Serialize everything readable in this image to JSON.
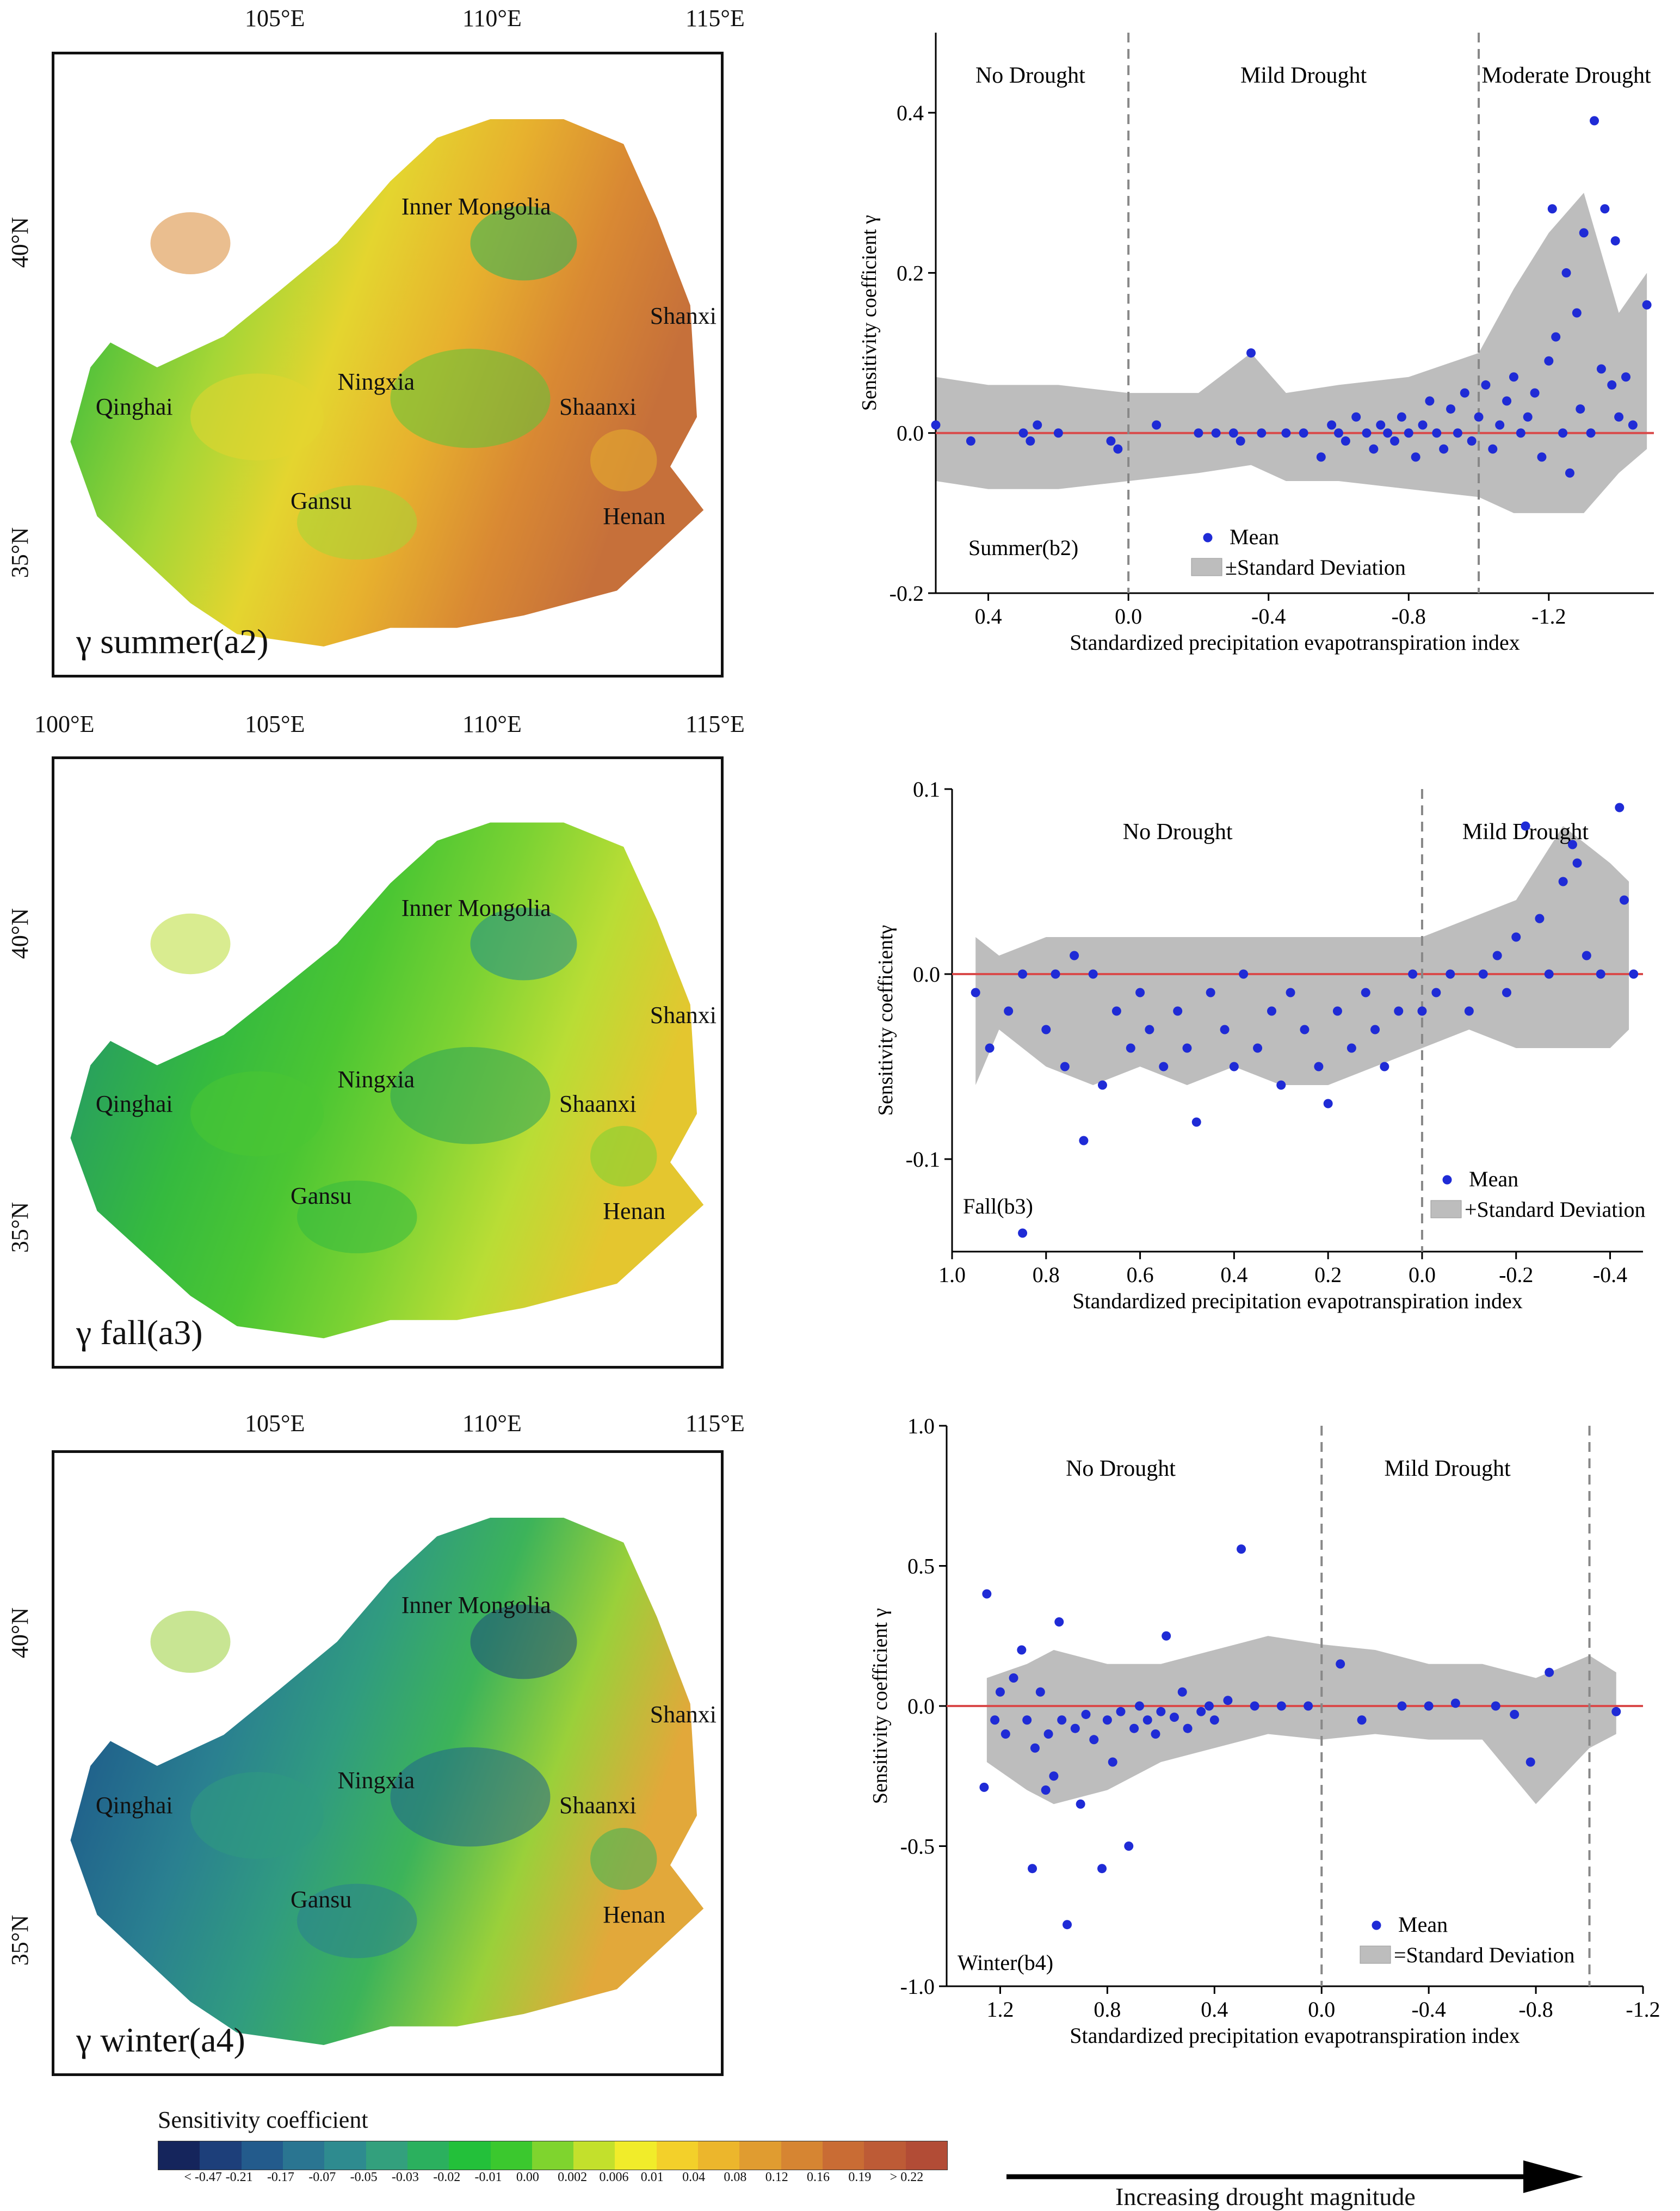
{
  "maps": [
    {
      "id": "a2",
      "panel_label": "γ summer(a2)",
      "top_ticks": [
        "105°E",
        "110°E",
        "115°E"
      ],
      "left_ticks": [
        "40°N",
        "35°N"
      ],
      "regions": [
        "Inner Mongolia",
        "Ningxia",
        "Qinghai",
        "Shaanxi",
        "Shanxi",
        "Gansu",
        "Henan"
      ]
    },
    {
      "id": "a3",
      "panel_label": "γ fall(a3)",
      "top_ticks": [
        "100°E",
        "105°E",
        "110°E",
        "115°E"
      ],
      "left_ticks": [
        "40°N",
        "35°N"
      ],
      "regions": [
        "Inner Mongolia",
        "Ningxia",
        "Qinghai",
        "Shaanxi",
        "Shanxi",
        "Gansu",
        "Henan"
      ]
    },
    {
      "id": "a4",
      "panel_label": "γ winter(a4)",
      "top_ticks": [
        "105°E",
        "110°E",
        "115°E"
      ],
      "left_ticks": [
        "40°N",
        "35°N"
      ],
      "regions": [
        "Inner Mongolia",
        "Ningxia",
        "Qinghai",
        "Shaanxi",
        "Shanxi",
        "Gansu",
        "Henan"
      ]
    }
  ],
  "chart_data": [
    {
      "type": "scatter",
      "id": "b2",
      "panel_label": "Summer(b2)",
      "xlabel": "Standardized precipitation evapotranspiration index",
      "ylabel": "Sensitivity coefficient γ",
      "x_reversed": true,
      "xlim": [
        0.55,
        -1.5
      ],
      "ylim": [
        -0.2,
        0.5
      ],
      "xticks": [
        {
          "v": 0.4,
          "t": "0.4"
        },
        {
          "v": 0.0,
          "t": "0.0"
        },
        {
          "v": -0.4,
          "t": "-0.4"
        },
        {
          "v": -0.8,
          "t": "-0.8"
        },
        {
          "v": -1.2,
          "t": "-1.2"
        }
      ],
      "yticks": [
        {
          "v": -0.2,
          "t": "-0.2"
        },
        {
          "v": 0.0,
          "t": "0.0"
        },
        {
          "v": 0.2,
          "t": "0.2"
        },
        {
          "v": 0.4,
          "t": "0.4"
        }
      ],
      "dividers": [
        0.0,
        -1.0
      ],
      "zones": [
        {
          "x": 0.28,
          "label": "No Drought"
        },
        {
          "x": -0.5,
          "label": "Mild Drought"
        },
        {
          "x": -1.25,
          "label": "Moderate Drought"
        }
      ],
      "legend": {
        "mean": "Mean",
        "sd": "±Standard Deviation"
      },
      "band": [
        [
          0.55,
          -0.06,
          0.07
        ],
        [
          0.4,
          -0.07,
          0.06
        ],
        [
          0.2,
          -0.07,
          0.06
        ],
        [
          0.0,
          -0.06,
          0.05
        ],
        [
          -0.2,
          -0.05,
          0.05
        ],
        [
          -0.35,
          -0.04,
          0.1
        ],
        [
          -0.45,
          -0.06,
          0.05
        ],
        [
          -0.6,
          -0.06,
          0.06
        ],
        [
          -0.8,
          -0.07,
          0.07
        ],
        [
          -1.0,
          -0.08,
          0.1
        ],
        [
          -1.1,
          -0.1,
          0.18
        ],
        [
          -1.2,
          -0.1,
          0.25
        ],
        [
          -1.3,
          -0.1,
          0.3
        ],
        [
          -1.4,
          -0.05,
          0.15
        ],
        [
          -1.48,
          -0.02,
          0.2
        ]
      ],
      "points": [
        [
          0.55,
          0.01
        ],
        [
          0.45,
          -0.01
        ],
        [
          0.3,
          0.0
        ],
        [
          0.28,
          -0.01
        ],
        [
          0.26,
          0.01
        ],
        [
          0.2,
          0.0
        ],
        [
          0.05,
          -0.01
        ],
        [
          0.03,
          -0.02
        ],
        [
          -0.08,
          0.01
        ],
        [
          -0.2,
          0.0
        ],
        [
          -0.25,
          0.0
        ],
        [
          -0.3,
          0.0
        ],
        [
          -0.32,
          -0.01
        ],
        [
          -0.35,
          0.1
        ],
        [
          -0.38,
          0.0
        ],
        [
          -0.45,
          0.0
        ],
        [
          -0.5,
          0.0
        ],
        [
          -0.55,
          -0.03
        ],
        [
          -0.58,
          0.01
        ],
        [
          -0.6,
          0.0
        ],
        [
          -0.62,
          -0.01
        ],
        [
          -0.65,
          0.02
        ],
        [
          -0.68,
          0.0
        ],
        [
          -0.7,
          -0.02
        ],
        [
          -0.72,
          0.01
        ],
        [
          -0.74,
          0.0
        ],
        [
          -0.76,
          -0.01
        ],
        [
          -0.78,
          0.02
        ],
        [
          -0.8,
          0.0
        ],
        [
          -0.82,
          -0.03
        ],
        [
          -0.84,
          0.01
        ],
        [
          -0.86,
          0.04
        ],
        [
          -0.88,
          0.0
        ],
        [
          -0.9,
          -0.02
        ],
        [
          -0.92,
          0.03
        ],
        [
          -0.94,
          0.0
        ],
        [
          -0.96,
          0.05
        ],
        [
          -0.98,
          -0.01
        ],
        [
          -1.0,
          0.02
        ],
        [
          -1.02,
          0.06
        ],
        [
          -1.04,
          -0.02
        ],
        [
          -1.06,
          0.01
        ],
        [
          -1.08,
          0.04
        ],
        [
          -1.1,
          0.07
        ],
        [
          -1.12,
          0.0
        ],
        [
          -1.14,
          0.02
        ],
        [
          -1.16,
          0.05
        ],
        [
          -1.18,
          -0.03
        ],
        [
          -1.2,
          0.09
        ],
        [
          -1.21,
          0.28
        ],
        [
          -1.22,
          0.12
        ],
        [
          -1.24,
          0.0
        ],
        [
          -1.25,
          0.2
        ],
        [
          -1.26,
          -0.05
        ],
        [
          -1.28,
          0.15
        ],
        [
          -1.29,
          0.03
        ],
        [
          -1.3,
          0.25
        ],
        [
          -1.32,
          0.0
        ],
        [
          -1.33,
          0.39
        ],
        [
          -1.35,
          0.08
        ],
        [
          -1.36,
          0.28
        ],
        [
          -1.38,
          0.06
        ],
        [
          -1.39,
          0.24
        ],
        [
          -1.4,
          0.02
        ],
        [
          -1.42,
          0.07
        ],
        [
          -1.44,
          0.01
        ],
        [
          -1.48,
          0.16
        ]
      ]
    },
    {
      "type": "scatter",
      "id": "b3",
      "panel_label": "Fall(b3)",
      "xlabel": "Standardized precipitation evapotranspiration index",
      "ylabel": "Sensitivity coefficientγ",
      "x_reversed": true,
      "xlim": [
        1.0,
        -0.47
      ],
      "ylim": [
        -0.15,
        0.1
      ],
      "xticks": [
        {
          "v": 1.0,
          "t": "1.0"
        },
        {
          "v": 0.8,
          "t": "0.8"
        },
        {
          "v": 0.6,
          "t": "0.6"
        },
        {
          "v": 0.4,
          "t": "0.4"
        },
        {
          "v": 0.2,
          "t": "0.2"
        },
        {
          "v": 0.0,
          "t": "0.0"
        },
        {
          "v": -0.2,
          "t": "-0.2"
        },
        {
          "v": -0.4,
          "t": "-0.4"
        }
      ],
      "yticks": [
        {
          "v": -0.1,
          "t": "-0.1"
        },
        {
          "v": 0.0,
          "t": "0.0"
        },
        {
          "v": 0.1,
          "t": "0.1"
        }
      ],
      "dividers": [
        0.0
      ],
      "zones": [
        {
          "x": 0.52,
          "label": "No Drought"
        },
        {
          "x": -0.22,
          "label": "Mild Drought"
        }
      ],
      "legend": {
        "mean": "Mean",
        "sd": "+Standard Deviation"
      },
      "band": [
        [
          0.95,
          -0.06,
          0.02
        ],
        [
          0.9,
          -0.03,
          0.01
        ],
        [
          0.8,
          -0.05,
          0.02
        ],
        [
          0.7,
          -0.06,
          0.02
        ],
        [
          0.6,
          -0.05,
          0.02
        ],
        [
          0.5,
          -0.06,
          0.02
        ],
        [
          0.4,
          -0.05,
          0.02
        ],
        [
          0.3,
          -0.06,
          0.02
        ],
        [
          0.2,
          -0.06,
          0.02
        ],
        [
          0.1,
          -0.05,
          0.02
        ],
        [
          0.0,
          -0.04,
          0.02
        ],
        [
          -0.1,
          -0.03,
          0.03
        ],
        [
          -0.2,
          -0.04,
          0.04
        ],
        [
          -0.3,
          -0.04,
          0.08
        ],
        [
          -0.4,
          -0.04,
          0.06
        ],
        [
          -0.44,
          -0.03,
          0.05
        ]
      ],
      "points": [
        [
          0.95,
          -0.01
        ],
        [
          0.92,
          -0.04
        ],
        [
          0.88,
          -0.02
        ],
        [
          0.85,
          0.0
        ],
        [
          0.8,
          -0.03
        ],
        [
          0.78,
          0.0
        ],
        [
          0.76,
          -0.05
        ],
        [
          0.74,
          0.01
        ],
        [
          0.72,
          -0.09
        ],
        [
          0.7,
          0.0
        ],
        [
          0.68,
          -0.06
        ],
        [
          0.65,
          -0.02
        ],
        [
          0.62,
          -0.04
        ],
        [
          0.6,
          -0.01
        ],
        [
          0.58,
          -0.03
        ],
        [
          0.55,
          -0.05
        ],
        [
          0.52,
          -0.02
        ],
        [
          0.5,
          -0.04
        ],
        [
          0.48,
          -0.08
        ],
        [
          0.45,
          -0.01
        ],
        [
          0.42,
          -0.03
        ],
        [
          0.4,
          -0.05
        ],
        [
          0.38,
          0.0
        ],
        [
          0.35,
          -0.04
        ],
        [
          0.32,
          -0.02
        ],
        [
          0.3,
          -0.06
        ],
        [
          0.28,
          -0.01
        ],
        [
          0.25,
          -0.03
        ],
        [
          0.22,
          -0.05
        ],
        [
          0.2,
          -0.07
        ],
        [
          0.18,
          -0.02
        ],
        [
          0.15,
          -0.04
        ],
        [
          0.12,
          -0.01
        ],
        [
          0.1,
          -0.03
        ],
        [
          0.08,
          -0.05
        ],
        [
          0.05,
          -0.02
        ],
        [
          0.02,
          0.0
        ],
        [
          0.0,
          -0.02
        ],
        [
          -0.03,
          -0.01
        ],
        [
          -0.06,
          0.0
        ],
        [
          -0.1,
          -0.02
        ],
        [
          -0.13,
          0.0
        ],
        [
          -0.16,
          0.01
        ],
        [
          -0.18,
          -0.01
        ],
        [
          -0.2,
          0.02
        ],
        [
          -0.22,
          0.08
        ],
        [
          -0.25,
          0.03
        ],
        [
          -0.27,
          0.0
        ],
        [
          -0.3,
          0.05
        ],
        [
          -0.32,
          0.07
        ],
        [
          -0.33,
          0.06
        ],
        [
          -0.35,
          0.01
        ],
        [
          -0.38,
          0.0
        ],
        [
          -0.42,
          0.09
        ],
        [
          -0.43,
          0.04
        ],
        [
          -0.45,
          0.0
        ],
        [
          0.85,
          -0.14
        ]
      ]
    },
    {
      "type": "scatter",
      "id": "b4",
      "panel_label": "Winter(b4)",
      "xlabel": "Standardized precipitation evapotranspiration index",
      "ylabel": "Sensitivity coefficient γ",
      "x_reversed": true,
      "xlim": [
        1.4,
        -1.2
      ],
      "ylim": [
        -1.0,
        1.0
      ],
      "xticks": [
        {
          "v": 1.2,
          "t": "1.2"
        },
        {
          "v": 0.8,
          "t": "0.8"
        },
        {
          "v": 0.4,
          "t": "0.4"
        },
        {
          "v": 0.0,
          "t": "0.0"
        },
        {
          "v": -0.4,
          "t": "-0.4"
        },
        {
          "v": -0.8,
          "t": "-0.8"
        },
        {
          "v": -1.2,
          "t": "-1.2"
        }
      ],
      "yticks": [
        {
          "v": -1.0,
          "t": "-1.0"
        },
        {
          "v": -0.5,
          "t": "-0.5"
        },
        {
          "v": 0.0,
          "t": "0.0"
        },
        {
          "v": 0.5,
          "t": "0.5"
        },
        {
          "v": 1.0,
          "t": "1.0"
        }
      ],
      "dividers": [
        0.0,
        -1.0
      ],
      "zones": [
        {
          "x": 0.75,
          "label": "No Drought"
        },
        {
          "x": -0.47,
          "label": "Mild Drought"
        }
      ],
      "legend": {
        "mean": "Mean",
        "sd": "=Standard Deviation"
      },
      "band": [
        [
          1.25,
          -0.2,
          0.1
        ],
        [
          1.1,
          -0.3,
          0.15
        ],
        [
          1.0,
          -0.35,
          0.2
        ],
        [
          0.8,
          -0.3,
          0.15
        ],
        [
          0.6,
          -0.2,
          0.15
        ],
        [
          0.4,
          -0.15,
          0.2
        ],
        [
          0.2,
          -0.1,
          0.25
        ],
        [
          0.0,
          -0.12,
          0.22
        ],
        [
          -0.2,
          -0.1,
          0.2
        ],
        [
          -0.4,
          -0.12,
          0.15
        ],
        [
          -0.6,
          -0.12,
          0.15
        ],
        [
          -0.8,
          -0.35,
          0.1
        ],
        [
          -1.0,
          -0.15,
          0.18
        ],
        [
          -1.1,
          -0.1,
          0.12
        ]
      ],
      "points": [
        [
          1.25,
          0.4
        ],
        [
          1.26,
          -0.29
        ],
        [
          1.22,
          -0.05
        ],
        [
          1.2,
          0.05
        ],
        [
          1.18,
          -0.1
        ],
        [
          1.15,
          0.1
        ],
        [
          1.12,
          0.2
        ],
        [
          1.1,
          -0.05
        ],
        [
          1.08,
          -0.58
        ],
        [
          1.07,
          -0.15
        ],
        [
          1.05,
          0.05
        ],
        [
          1.03,
          -0.3
        ],
        [
          1.02,
          -0.1
        ],
        [
          1.0,
          -0.25
        ],
        [
          0.98,
          0.3
        ],
        [
          0.97,
          -0.05
        ],
        [
          0.95,
          -0.78
        ],
        [
          0.92,
          -0.08
        ],
        [
          0.9,
          -0.35
        ],
        [
          0.88,
          -0.03
        ],
        [
          0.85,
          -0.12
        ],
        [
          0.82,
          -0.58
        ],
        [
          0.8,
          -0.05
        ],
        [
          0.78,
          -0.2
        ],
        [
          0.75,
          -0.02
        ],
        [
          0.72,
          -0.5
        ],
        [
          0.7,
          -0.08
        ],
        [
          0.68,
          0.0
        ],
        [
          0.65,
          -0.05
        ],
        [
          0.62,
          -0.1
        ],
        [
          0.6,
          -0.02
        ],
        [
          0.58,
          0.25
        ],
        [
          0.55,
          -0.04
        ],
        [
          0.52,
          0.05
        ],
        [
          0.5,
          -0.08
        ],
        [
          0.45,
          -0.02
        ],
        [
          0.42,
          0.0
        ],
        [
          0.4,
          -0.05
        ],
        [
          0.35,
          0.02
        ],
        [
          0.3,
          0.56
        ],
        [
          0.25,
          0.0
        ],
        [
          0.15,
          0.0
        ],
        [
          0.05,
          0.0
        ],
        [
          -0.07,
          0.15
        ],
        [
          -0.15,
          -0.05
        ],
        [
          -0.3,
          0.0
        ],
        [
          -0.4,
          0.0
        ],
        [
          -0.5,
          0.01
        ],
        [
          -0.65,
          0.0
        ],
        [
          -0.72,
          -0.03
        ],
        [
          -0.78,
          -0.2
        ],
        [
          -0.85,
          0.12
        ],
        [
          -1.1,
          -0.02
        ]
      ]
    }
  ],
  "colorbar": {
    "title": "Sensitivity coefficient",
    "colors": [
      "#15255c",
      "#1d3f7a",
      "#235b8c",
      "#2a7591",
      "#2e8b8f",
      "#33a07d",
      "#2bb05e",
      "#23c03a",
      "#3bc82e",
      "#7fd42e",
      "#c3e02c",
      "#f1ec2a",
      "#f3d02a",
      "#ecb62c",
      "#e09c30",
      "#d68532",
      "#c96c34",
      "#bd5b36",
      "#b24c36"
    ],
    "labels": [
      "< -0.47",
      "-0.21",
      "-0.17",
      "-0.07",
      "-0.05",
      "-0.03",
      "-0.02",
      "-0.01",
      "0.00",
      "0.002",
      "0.006",
      "0.01",
      "0.04",
      "0.08",
      "0.12",
      "0.16",
      "0.19",
      "> 0.22"
    ]
  },
  "arrow_caption": "Increasing drought magnitude"
}
